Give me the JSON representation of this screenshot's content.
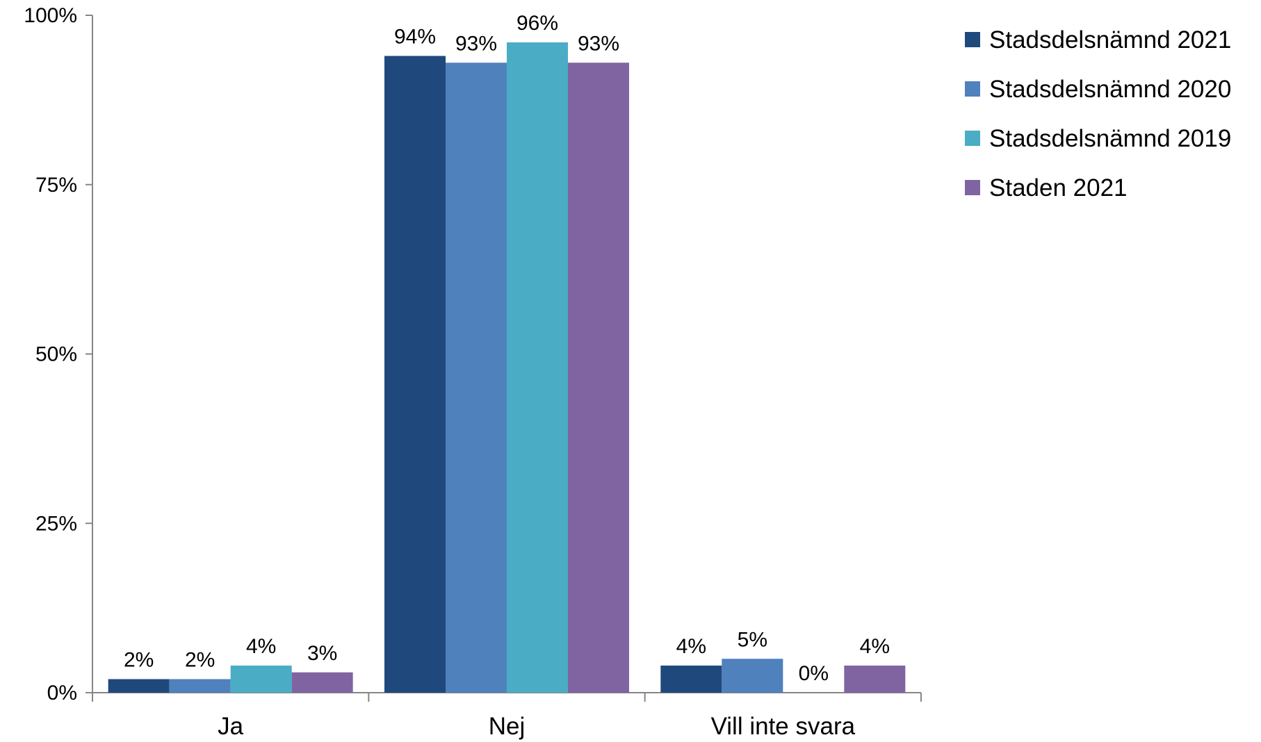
{
  "chart_data": {
    "type": "bar",
    "categories": [
      "Ja",
      "Nej",
      "Vill inte svara"
    ],
    "series": [
      {
        "name": "Stadsdelsnämnd 2021",
        "color": "#1F497D",
        "values": [
          2,
          94,
          4
        ],
        "labels": [
          "2%",
          "94%",
          "4%"
        ]
      },
      {
        "name": "Stadsdelsnämnd 2020",
        "color": "#4F81BD",
        "values": [
          2,
          93,
          5
        ],
        "labels": [
          "2%",
          "93%",
          "5%"
        ]
      },
      {
        "name": "Stadsdelsnämnd 2019",
        "color": "#4BACC6",
        "values": [
          4,
          96,
          0
        ],
        "labels": [
          "4%",
          "96%",
          "0%"
        ]
      },
      {
        "name": "Staden 2021",
        "color": "#8064A2",
        "values": [
          3,
          93,
          4
        ],
        "labels": [
          "3%",
          "93%",
          "4%"
        ]
      }
    ],
    "ylim": [
      0,
      100
    ],
    "yticks": [
      0,
      25,
      50,
      75,
      100
    ],
    "ytick_labels": [
      "0%",
      "25%",
      "50%",
      "75%",
      "100%"
    ],
    "legend_position": "top-right",
    "grid": false
  }
}
